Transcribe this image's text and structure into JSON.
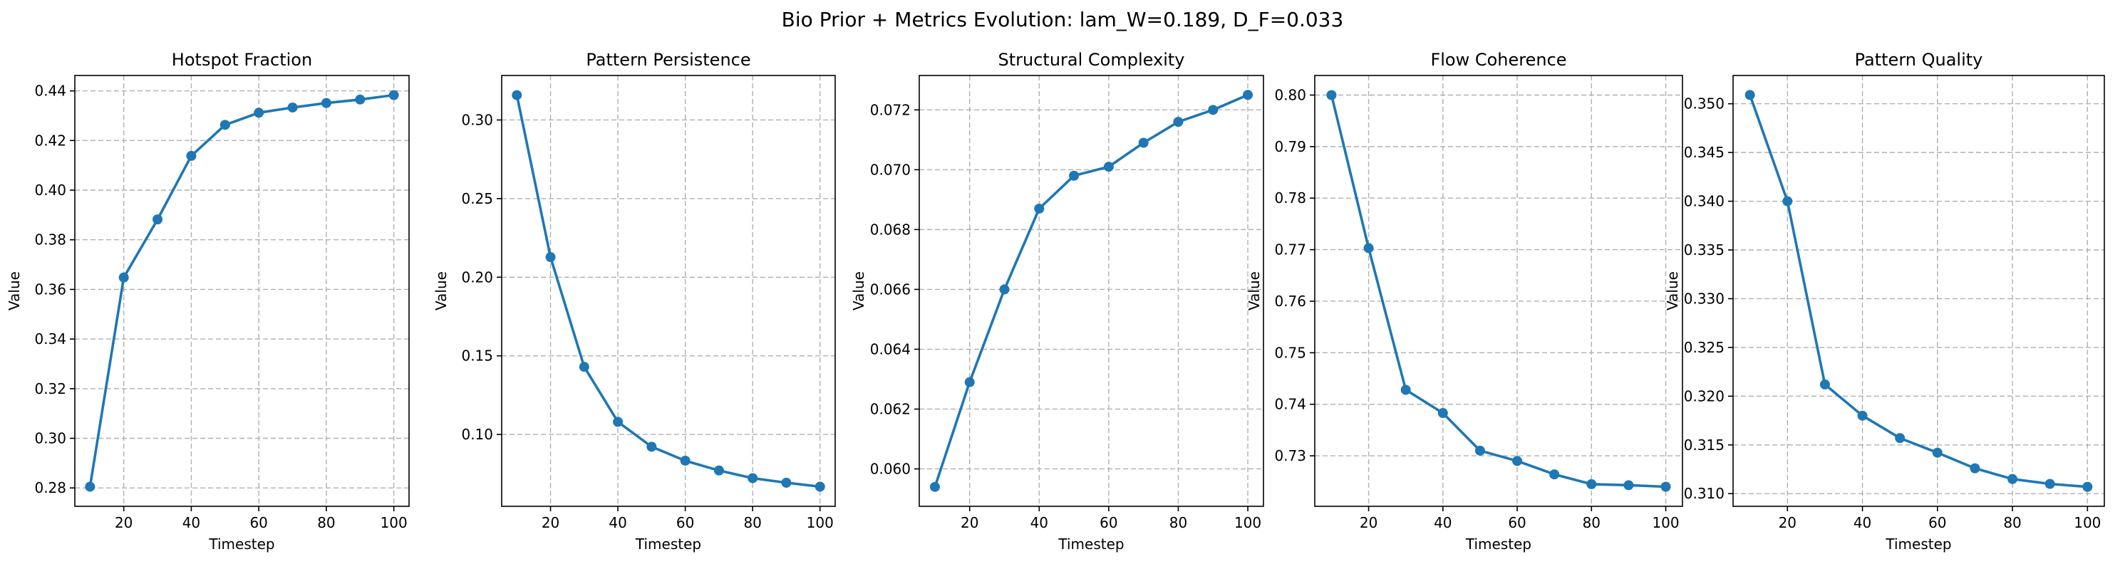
{
  "figure": {
    "suptitle": "Bio Prior + Metrics Evolution: lam_W=0.189, D_F=0.033"
  },
  "colors": {
    "series": "#1f77b4"
  },
  "chart_data": [
    {
      "type": "line",
      "title": "Hotspot Fraction",
      "xlabel": "Timestep",
      "ylabel": "Value",
      "x": [
        10,
        20,
        30,
        40,
        50,
        60,
        70,
        80,
        90,
        100
      ],
      "values": [
        0.2805,
        0.3648,
        0.3882,
        0.4138,
        0.4263,
        0.4312,
        0.4333,
        0.4351,
        0.4365,
        0.4383
      ],
      "xlim": [
        5.5,
        104.5
      ],
      "ylim": [
        0.2726,
        0.4462
      ],
      "xticks": [
        20,
        40,
        60,
        80,
        100
      ],
      "yticks": [
        0.28,
        0.3,
        0.32,
        0.34,
        0.36,
        0.38,
        0.4,
        0.42,
        0.44
      ],
      "ytick_labels": [
        "0.28",
        "0.30",
        "0.32",
        "0.34",
        "0.36",
        "0.38",
        "0.40",
        "0.42",
        "0.44"
      ],
      "grid": true
    },
    {
      "type": "line",
      "title": "Pattern Persistence",
      "xlabel": "Timestep",
      "ylabel": "Value",
      "x": [
        10,
        20,
        30,
        40,
        50,
        60,
        70,
        80,
        90,
        100
      ],
      "values": [
        0.3158,
        0.2128,
        0.143,
        0.108,
        0.0922,
        0.0833,
        0.0771,
        0.0722,
        0.0693,
        0.0668
      ],
      "xlim": [
        5.5,
        104.5
      ],
      "ylim": [
        0.0543,
        0.3283
      ],
      "xticks": [
        20,
        40,
        60,
        80,
        100
      ],
      "yticks": [
        0.1,
        0.15,
        0.2,
        0.25,
        0.3
      ],
      "ytick_labels": [
        "0.10",
        "0.15",
        "0.20",
        "0.25",
        "0.30"
      ],
      "grid": true
    },
    {
      "type": "line",
      "title": "Structural Complexity",
      "xlabel": "Timestep",
      "ylabel": "Value",
      "x": [
        10,
        20,
        30,
        40,
        50,
        60,
        70,
        80,
        90,
        100
      ],
      "values": [
        0.0594,
        0.0629,
        0.066,
        0.0687,
        0.0698,
        0.0701,
        0.0709,
        0.0716,
        0.072,
        0.0725
      ],
      "xlim": [
        5.5,
        104.5
      ],
      "ylim": [
        0.05875,
        0.07315
      ],
      "xticks": [
        20,
        40,
        60,
        80,
        100
      ],
      "yticks": [
        0.06,
        0.062,
        0.064,
        0.066,
        0.068,
        0.07,
        0.072
      ],
      "ytick_labels": [
        "0.060",
        "0.062",
        "0.064",
        "0.066",
        "0.068",
        "0.070",
        "0.072"
      ],
      "grid": true
    },
    {
      "type": "line",
      "title": "Flow Coherence",
      "xlabel": "Timestep",
      "ylabel": "Value",
      "x": [
        10,
        20,
        30,
        40,
        50,
        60,
        70,
        80,
        90,
        100
      ],
      "values": [
        0.8,
        0.7703,
        0.7428,
        0.7383,
        0.731,
        0.729,
        0.7264,
        0.7245,
        0.7243,
        0.724
      ],
      "xlim": [
        5.5,
        104.5
      ],
      "ylim": [
        0.7202,
        0.8038
      ],
      "xticks": [
        20,
        40,
        60,
        80,
        100
      ],
      "yticks": [
        0.73,
        0.74,
        0.75,
        0.76,
        0.77,
        0.78,
        0.79,
        0.8
      ],
      "ytick_labels": [
        "0.73",
        "0.74",
        "0.75",
        "0.76",
        "0.77",
        "0.78",
        "0.79",
        "0.80"
      ],
      "grid": true
    },
    {
      "type": "line",
      "title": "Pattern Quality",
      "xlabel": "Timestep",
      "ylabel": "Value",
      "x": [
        10,
        20,
        30,
        40,
        50,
        60,
        70,
        80,
        90,
        100
      ],
      "values": [
        0.3509,
        0.34,
        0.3212,
        0.318,
        0.3157,
        0.3142,
        0.3126,
        0.3115,
        0.311,
        0.3107
      ],
      "xlim": [
        5.5,
        104.5
      ],
      "ylim": [
        0.3087,
        0.3529
      ],
      "xticks": [
        20,
        40,
        60,
        80,
        100
      ],
      "yticks": [
        0.31,
        0.315,
        0.32,
        0.325,
        0.33,
        0.335,
        0.34,
        0.345,
        0.35
      ],
      "ytick_labels": [
        "0.310",
        "0.315",
        "0.320",
        "0.325",
        "0.330",
        "0.335",
        "0.340",
        "0.345",
        "0.350"
      ],
      "grid": true
    }
  ]
}
